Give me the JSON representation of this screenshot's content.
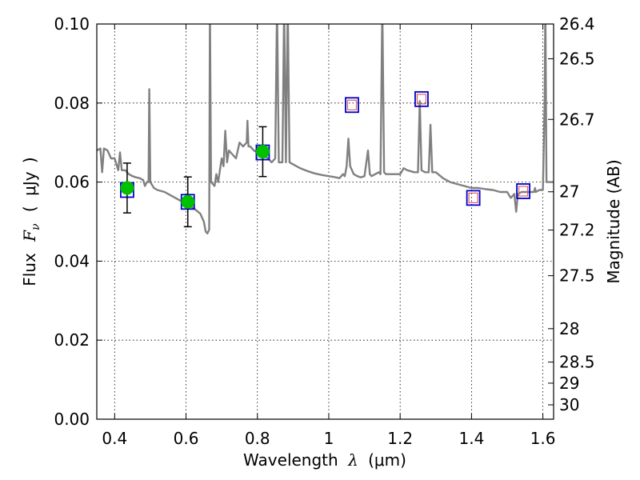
{
  "chart_data": {
    "type": "scatter",
    "title": "",
    "xlabel": {
      "prefix": "Wavelength",
      "symbol": "λ",
      "unit_open": "(",
      "unit": "μm",
      "unit_close": ")"
    },
    "ylabel": {
      "prefix": "Flux",
      "symbol": "F",
      "subscript": "ν",
      "unit_open": "(",
      "unit": "μJy",
      "unit_close": ")"
    },
    "y2label": "Magnitude (AB)",
    "xlim": [
      0.35,
      1.63
    ],
    "ylim": [
      0.0,
      0.1
    ],
    "grid": true,
    "x_ticks": [
      {
        "value": 0.4,
        "label": "0.4"
      },
      {
        "value": 0.6,
        "label": "0.6"
      },
      {
        "value": 0.8,
        "label": "0.8"
      },
      {
        "value": 1.0,
        "label": "1"
      },
      {
        "value": 1.2,
        "label": "1.2"
      },
      {
        "value": 1.4,
        "label": "1.4"
      },
      {
        "value": 1.6,
        "label": "1.6"
      }
    ],
    "y_ticks": [
      {
        "value": 0.0,
        "label": "0.00"
      },
      {
        "value": 0.02,
        "label": "0.02"
      },
      {
        "value": 0.04,
        "label": "0.04"
      },
      {
        "value": 0.06,
        "label": "0.06"
      },
      {
        "value": 0.08,
        "label": "0.08"
      },
      {
        "value": 0.1,
        "label": "0.10"
      }
    ],
    "y2_ticks": [
      {
        "value": 26.4,
        "label": "26.4"
      },
      {
        "value": 26.5,
        "label": "26.5"
      },
      {
        "value": 26.7,
        "label": "26.7"
      },
      {
        "value": 27.0,
        "label": "27"
      },
      {
        "value": 27.2,
        "label": "27.2"
      },
      {
        "value": 27.5,
        "label": "27.5"
      },
      {
        "value": 28.0,
        "label": "28"
      },
      {
        "value": 28.5,
        "label": "28.5"
      },
      {
        "value": 29.0,
        "label": "29"
      },
      {
        "value": 30.0,
        "label": "30"
      }
    ],
    "series": [
      {
        "type": "line",
        "color": "#808080",
        "points": [
          [
            0.35,
            0.068
          ],
          [
            0.36,
            0.0685
          ],
          [
            0.365,
            0.0625
          ],
          [
            0.37,
            0.0685
          ],
          [
            0.38,
            0.068
          ],
          [
            0.39,
            0.066
          ],
          [
            0.4,
            0.066
          ],
          [
            0.41,
            0.063
          ],
          [
            0.415,
            0.0675
          ],
          [
            0.42,
            0.063
          ],
          [
            0.43,
            0.063
          ],
          [
            0.44,
            0.062
          ],
          [
            0.45,
            0.0615
          ],
          [
            0.46,
            0.0612
          ],
          [
            0.47,
            0.061
          ],
          [
            0.48,
            0.0605
          ],
          [
            0.485,
            0.059
          ],
          [
            0.49,
            0.06
          ],
          [
            0.495,
            0.06
          ],
          [
            0.497,
            0.0835
          ],
          [
            0.5,
            0.06
          ],
          [
            0.51,
            0.0585
          ],
          [
            0.52,
            0.058
          ],
          [
            0.54,
            0.0575
          ],
          [
            0.56,
            0.0565
          ],
          [
            0.58,
            0.0555
          ],
          [
            0.6,
            0.0545
          ],
          [
            0.62,
            0.0535
          ],
          [
            0.64,
            0.052
          ],
          [
            0.65,
            0.05
          ],
          [
            0.655,
            0.0475
          ],
          [
            0.66,
            0.047
          ],
          [
            0.665,
            0.048
          ],
          [
            0.667,
            0.105
          ],
          [
            0.67,
            0.06
          ],
          [
            0.68,
            0.059
          ],
          [
            0.685,
            0.062
          ],
          [
            0.69,
            0.06
          ],
          [
            0.695,
            0.063
          ],
          [
            0.7,
            0.066
          ],
          [
            0.705,
            0.064
          ],
          [
            0.71,
            0.073
          ],
          [
            0.715,
            0.065
          ],
          [
            0.72,
            0.068
          ],
          [
            0.73,
            0.067
          ],
          [
            0.74,
            0.066
          ],
          [
            0.75,
            0.07
          ],
          [
            0.76,
            0.069
          ],
          [
            0.77,
            0.07
          ],
          [
            0.772,
            0.0755
          ],
          [
            0.775,
            0.069
          ],
          [
            0.78,
            0.069
          ],
          [
            0.79,
            0.068
          ],
          [
            0.8,
            0.0675
          ],
          [
            0.81,
            0.067
          ],
          [
            0.82,
            0.0665
          ],
          [
            0.83,
            0.066
          ],
          [
            0.84,
            0.065
          ],
          [
            0.85,
            0.066
          ],
          [
            0.855,
            0.105
          ],
          [
            0.86,
            0.065
          ],
          [
            0.87,
            0.065
          ],
          [
            0.875,
            0.105
          ],
          [
            0.88,
            0.065
          ],
          [
            0.885,
            0.105
          ],
          [
            0.89,
            0.065
          ],
          [
            0.9,
            0.0645
          ],
          [
            0.92,
            0.0635
          ],
          [
            0.94,
            0.0628
          ],
          [
            0.96,
            0.0622
          ],
          [
            0.98,
            0.0618
          ],
          [
            1.0,
            0.0615
          ],
          [
            1.02,
            0.0612
          ],
          [
            1.03,
            0.061
          ],
          [
            1.04,
            0.062
          ],
          [
            1.045,
            0.0615
          ],
          [
            1.05,
            0.064
          ],
          [
            1.055,
            0.071
          ],
          [
            1.06,
            0.064
          ],
          [
            1.07,
            0.062
          ],
          [
            1.08,
            0.0615
          ],
          [
            1.09,
            0.0612
          ],
          [
            1.1,
            0.0615
          ],
          [
            1.11,
            0.068
          ],
          [
            1.115,
            0.062
          ],
          [
            1.12,
            0.0615
          ],
          [
            1.13,
            0.062
          ],
          [
            1.14,
            0.0625
          ],
          [
            1.145,
            0.062
          ],
          [
            1.15,
            0.105
          ],
          [
            1.155,
            0.0625
          ],
          [
            1.16,
            0.062
          ],
          [
            1.18,
            0.062
          ],
          [
            1.2,
            0.062
          ],
          [
            1.21,
            0.0635
          ],
          [
            1.22,
            0.063
          ],
          [
            1.24,
            0.0625
          ],
          [
            1.25,
            0.0625
          ],
          [
            1.255,
            0.0805
          ],
          [
            1.26,
            0.063
          ],
          [
            1.27,
            0.0625
          ],
          [
            1.28,
            0.0625
          ],
          [
            1.285,
            0.0745
          ],
          [
            1.29,
            0.0625
          ],
          [
            1.3,
            0.0625
          ],
          [
            1.32,
            0.061
          ],
          [
            1.34,
            0.06
          ],
          [
            1.36,
            0.0595
          ],
          [
            1.38,
            0.059
          ],
          [
            1.4,
            0.0585
          ],
          [
            1.42,
            0.0585
          ],
          [
            1.44,
            0.0582
          ],
          [
            1.46,
            0.058
          ],
          [
            1.48,
            0.0575
          ],
          [
            1.5,
            0.0575
          ],
          [
            1.51,
            0.056
          ],
          [
            1.52,
            0.057
          ],
          [
            1.525,
            0.0525
          ],
          [
            1.53,
            0.057
          ],
          [
            1.54,
            0.0575
          ],
          [
            1.56,
            0.0575
          ],
          [
            1.575,
            0.0575
          ],
          [
            1.578,
            0.0585
          ],
          [
            1.58,
            0.0575
          ],
          [
            1.59,
            0.058
          ],
          [
            1.6,
            0.058
          ],
          [
            1.605,
            0.08
          ],
          [
            1.607,
            0.105
          ],
          [
            1.61,
            0.06
          ],
          [
            1.62,
            0.06
          ],
          [
            1.63,
            0.06
          ]
        ]
      },
      {
        "type": "model_boxes",
        "color": "#0000cc",
        "points": [
          [
            0.435,
            0.058
          ],
          [
            0.605,
            0.055
          ],
          [
            0.815,
            0.0675
          ],
          [
            1.065,
            0.0795
          ],
          [
            1.26,
            0.081
          ],
          [
            1.405,
            0.056
          ],
          [
            1.545,
            0.0577
          ]
        ]
      },
      {
        "type": "detections",
        "color": "#00c000",
        "points": [
          {
            "x": 0.435,
            "y": 0.0585,
            "err": 0.0063
          },
          {
            "x": 0.605,
            "y": 0.055,
            "err": 0.0063
          },
          {
            "x": 0.815,
            "y": 0.0677,
            "err": 0.0063
          }
        ]
      },
      {
        "type": "upper_limit_boxes",
        "color": "#e06060",
        "points": [
          [
            1.065,
            0.0795
          ],
          [
            1.26,
            0.081
          ],
          [
            1.405,
            0.056
          ],
          [
            1.545,
            0.0577
          ]
        ]
      }
    ]
  }
}
